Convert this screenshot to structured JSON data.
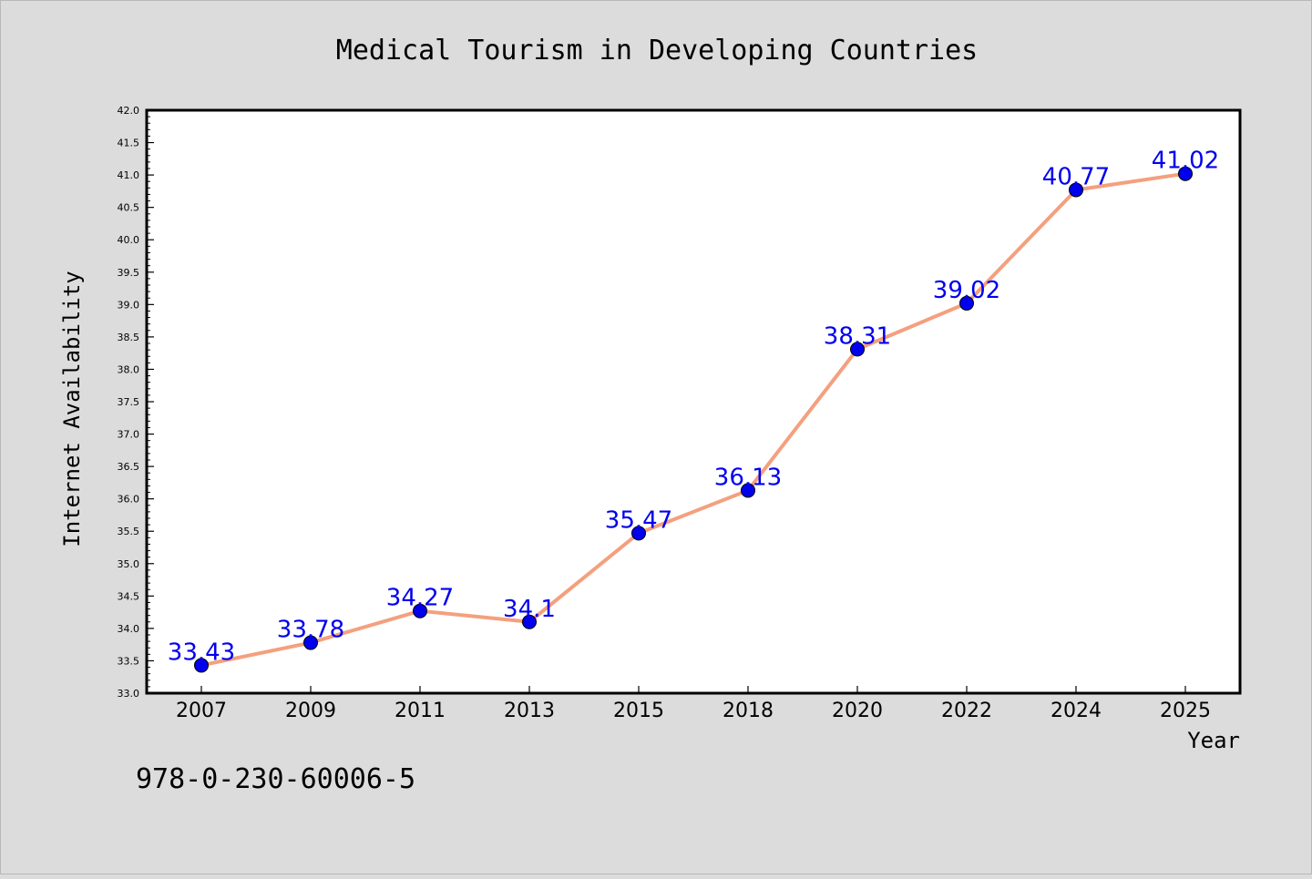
{
  "chart_data": {
    "type": "line",
    "title": "Medical Tourism in Developing Countries",
    "xlabel": "Year",
    "ylabel": "Internet Availability",
    "categories": [
      "2007",
      "2009",
      "2011",
      "2013",
      "2015",
      "2018",
      "2020",
      "2022",
      "2024",
      "2025"
    ],
    "values": [
      33.43,
      33.78,
      34.27,
      34.1,
      35.47,
      36.13,
      38.31,
      39.02,
      40.77,
      41.02
    ],
    "data_labels": [
      "33.43",
      "33.78",
      "34.27",
      "34.1",
      "35.47",
      "36.13",
      "38.31",
      "39.02",
      "40.77",
      "41.02"
    ],
    "ylim": [
      33.0,
      42.0
    ],
    "y_major_step": 0.5,
    "y_ticks": [
      "33.0",
      "33.5",
      "34.0",
      "34.5",
      "35.0",
      "35.5",
      "36.0",
      "36.5",
      "37.0",
      "37.5",
      "38.0",
      "38.5",
      "39.0",
      "39.5",
      "40.0",
      "40.5",
      "41.0",
      "41.5",
      "42.0"
    ],
    "grid": false,
    "legend": "none",
    "line_color": "#f4a07e",
    "marker_color": "#0000ee",
    "label_color": "#0000ee",
    "background": "#dcdcdc",
    "plot_background": "#ffffff"
  },
  "annotation": {
    "isbn": "978-0-230-60006-5"
  }
}
